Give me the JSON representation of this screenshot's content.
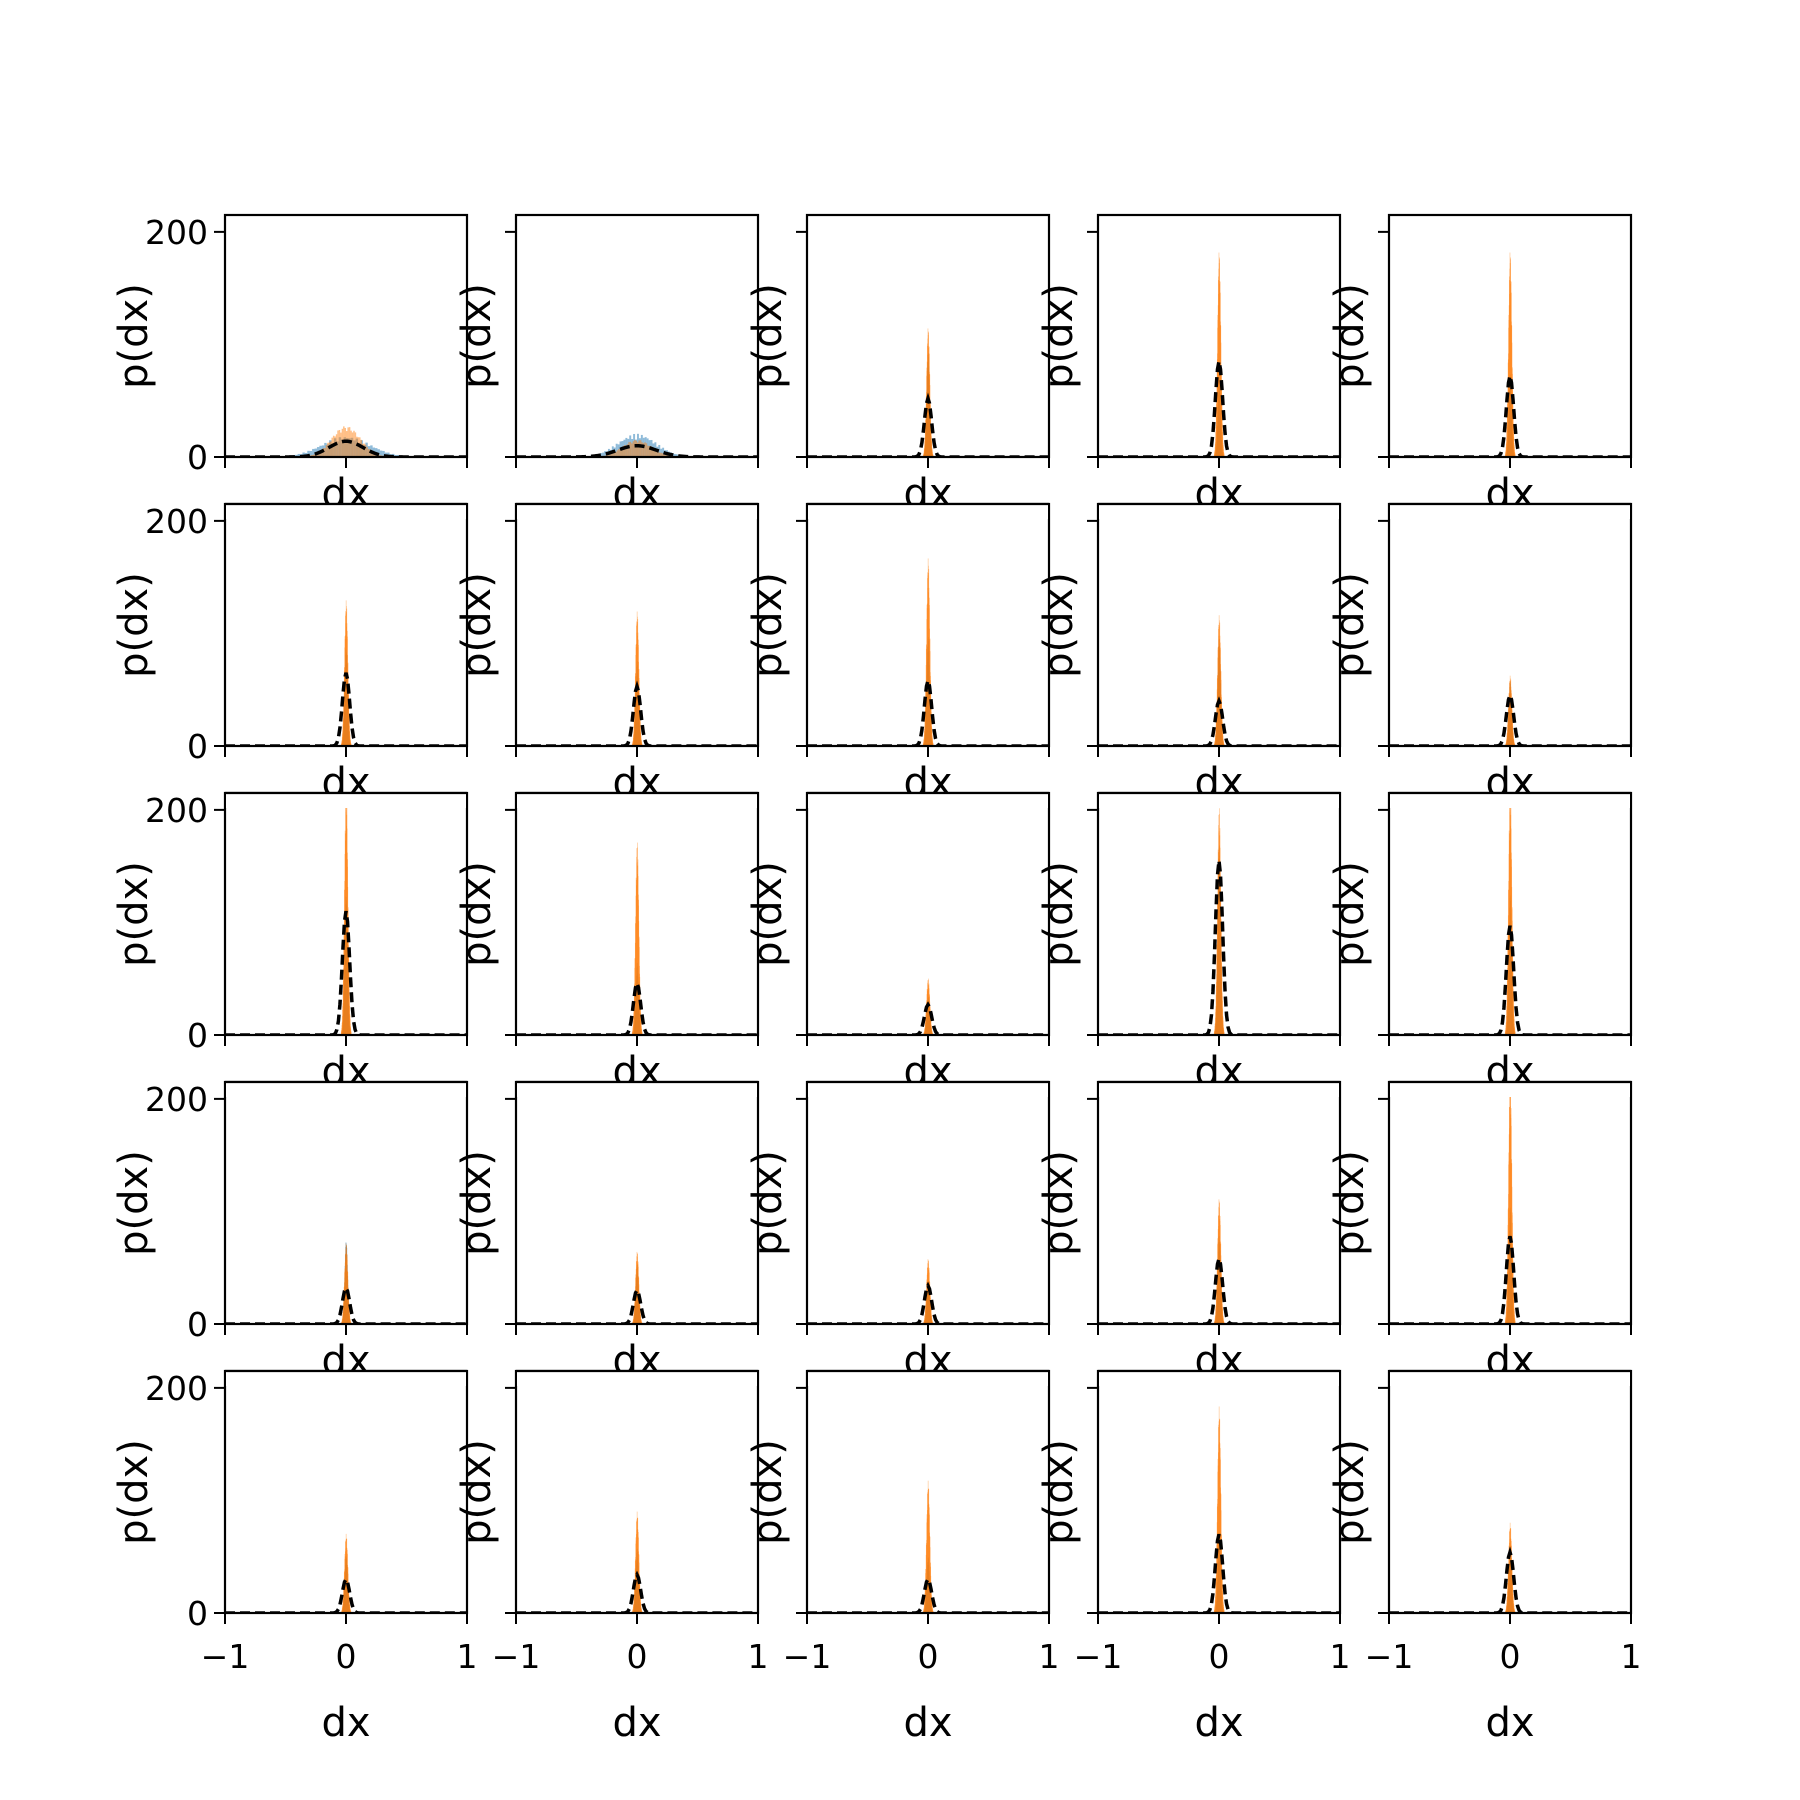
{
  "colors": {
    "blue": "#1f77b4",
    "orange": "#ff7f0e",
    "black": "#000000",
    "background": "#ffffff"
  },
  "chart_data": {
    "type": "bar",
    "layout": "grid",
    "rows": 5,
    "cols": 5,
    "sharex": true,
    "sharey": true,
    "xlabel": "dx",
    "ylabel": "p(dx)",
    "xlim": [
      -1,
      1
    ],
    "ylim": [
      0,
      215
    ],
    "xticks": [
      -1,
      0,
      1
    ],
    "xtick_labels": [
      "−1",
      "0",
      "1"
    ],
    "yticks": [
      0,
      200
    ],
    "ytick_labels": [
      "0",
      "200"
    ],
    "series_styles": [
      {
        "key": "blue",
        "kind": "histogram",
        "color": "#1f77b4",
        "alpha": 0.5
      },
      {
        "key": "orange",
        "kind": "histogram",
        "color": "#ff7f0e",
        "alpha": 0.5
      },
      {
        "key": "black",
        "kind": "dashed line",
        "color": "#000000"
      }
    ],
    "panels": [
      {
        "row": 0,
        "col": 0,
        "peaks": {
          "blue": 16,
          "orange": 25,
          "black": 14
        },
        "widths": {
          "blue": 0.2,
          "orange": 0.12,
          "black": 0.14
        }
      },
      {
        "row": 0,
        "col": 1,
        "peaks": {
          "blue": 18,
          "orange": 14,
          "black": 10
        },
        "widths": {
          "blue": 0.16,
          "orange": 0.12,
          "black": 0.16
        }
      },
      {
        "row": 0,
        "col": 2,
        "peaks": {
          "blue": 82,
          "orange": 105,
          "black": 52
        },
        "widths": {
          "blue": 0.012,
          "orange": 0.014,
          "black": 0.03
        }
      },
      {
        "row": 0,
        "col": 3,
        "peaks": {
          "blue": 60,
          "orange": 167,
          "black": 85
        },
        "widths": {
          "blue": 0.012,
          "orange": 0.014,
          "black": 0.03
        }
      },
      {
        "row": 0,
        "col": 4,
        "peaks": {
          "blue": 64,
          "orange": 167,
          "black": 72
        },
        "widths": {
          "blue": 0.012,
          "orange": 0.014,
          "black": 0.03
        }
      },
      {
        "row": 1,
        "col": 0,
        "peaks": {
          "blue": 78,
          "orange": 118,
          "black": 65
        },
        "widths": {
          "blue": 0.012,
          "orange": 0.014,
          "black": 0.03
        }
      },
      {
        "row": 1,
        "col": 1,
        "peaks": {
          "blue": 66,
          "orange": 109,
          "black": 53
        },
        "widths": {
          "blue": 0.012,
          "orange": 0.014,
          "black": 0.03
        }
      },
      {
        "row": 1,
        "col": 2,
        "peaks": {
          "blue": 86,
          "orange": 152,
          "black": 58
        },
        "widths": {
          "blue": 0.012,
          "orange": 0.014,
          "black": 0.03
        }
      },
      {
        "row": 1,
        "col": 3,
        "peaks": {
          "blue": 85,
          "orange": 106,
          "black": 40
        },
        "widths": {
          "blue": 0.012,
          "orange": 0.014,
          "black": 0.03
        }
      },
      {
        "row": 1,
        "col": 4,
        "peaks": {
          "blue": 50,
          "orange": 57,
          "black": 45
        },
        "widths": {
          "blue": 0.012,
          "orange": 0.014,
          "black": 0.03
        }
      },
      {
        "row": 2,
        "col": 0,
        "peaks": {
          "blue": 112,
          "orange": 204,
          "black": 110
        },
        "widths": {
          "blue": 0.012,
          "orange": 0.014,
          "black": 0.03
        }
      },
      {
        "row": 2,
        "col": 1,
        "peaks": {
          "blue": 56,
          "orange": 157,
          "black": 46
        },
        "widths": {
          "blue": 0.012,
          "orange": 0.014,
          "black": 0.03
        }
      },
      {
        "row": 2,
        "col": 2,
        "peaks": {
          "blue": 30,
          "orange": 46,
          "black": 27
        },
        "widths": {
          "blue": 0.012,
          "orange": 0.014,
          "black": 0.03
        }
      },
      {
        "row": 2,
        "col": 3,
        "peaks": {
          "blue": 150,
          "orange": 185,
          "black": 155
        },
        "widths": {
          "blue": 0.012,
          "orange": 0.014,
          "black": 0.03
        }
      },
      {
        "row": 2,
        "col": 4,
        "peaks": {
          "blue": 108,
          "orange": 204,
          "black": 97
        },
        "widths": {
          "blue": 0.012,
          "orange": 0.014,
          "black": 0.03
        }
      },
      {
        "row": 3,
        "col": 0,
        "peaks": {
          "blue": 66,
          "orange": 66,
          "black": 32
        },
        "widths": {
          "blue": 0.012,
          "orange": 0.014,
          "black": 0.03
        }
      },
      {
        "row": 3,
        "col": 1,
        "peaks": {
          "blue": 46,
          "orange": 59,
          "black": 30
        },
        "widths": {
          "blue": 0.012,
          "orange": 0.014,
          "black": 0.03
        }
      },
      {
        "row": 3,
        "col": 2,
        "peaks": {
          "blue": 34,
          "orange": 53,
          "black": 34
        },
        "widths": {
          "blue": 0.012,
          "orange": 0.014,
          "black": 0.03
        }
      },
      {
        "row": 3,
        "col": 3,
        "peaks": {
          "blue": 70,
          "orange": 102,
          "black": 58
        },
        "widths": {
          "blue": 0.012,
          "orange": 0.014,
          "black": 0.03
        }
      },
      {
        "row": 3,
        "col": 4,
        "peaks": {
          "blue": 90,
          "orange": 204,
          "black": 78
        },
        "widths": {
          "blue": 0.012,
          "orange": 0.014,
          "black": 0.03
        }
      },
      {
        "row": 4,
        "col": 0,
        "peaks": {
          "blue": 46,
          "orange": 64,
          "black": 30
        },
        "widths": {
          "blue": 0.012,
          "orange": 0.014,
          "black": 0.03
        }
      },
      {
        "row": 4,
        "col": 1,
        "peaks": {
          "blue": 50,
          "orange": 82,
          "black": 34
        },
        "widths": {
          "blue": 0.012,
          "orange": 0.014,
          "black": 0.03
        }
      },
      {
        "row": 4,
        "col": 2,
        "peaks": {
          "blue": 44,
          "orange": 107,
          "black": 30
        },
        "widths": {
          "blue": 0.012,
          "orange": 0.014,
          "black": 0.03
        }
      },
      {
        "row": 4,
        "col": 3,
        "peaks": {
          "blue": 60,
          "orange": 167,
          "black": 70
        },
        "widths": {
          "blue": 0.012,
          "orange": 0.014,
          "black": 0.03
        }
      },
      {
        "row": 4,
        "col": 4,
        "peaks": {
          "blue": 50,
          "orange": 73,
          "black": 54
        },
        "widths": {
          "blue": 0.012,
          "orange": 0.014,
          "black": 0.03
        }
      }
    ]
  }
}
